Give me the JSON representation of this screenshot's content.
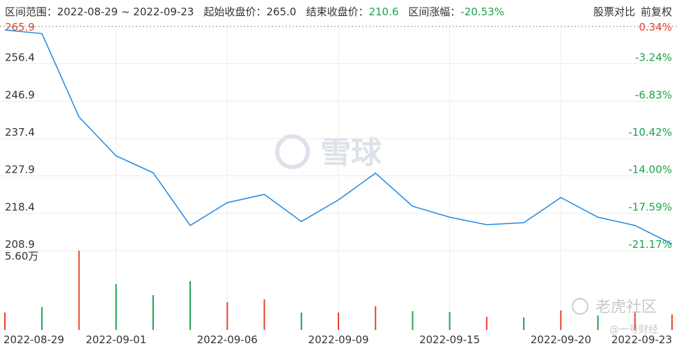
{
  "header": {
    "items": [
      {
        "label": "区间范围：",
        "value": "2022-08-29 ~ 2022-09-23"
      },
      {
        "label": "起始收盘价：",
        "value": "265.0"
      },
      {
        "label": "结束收盘价：",
        "value": "210.6"
      },
      {
        "label": "区间涨幅：",
        "value": "-20.53%"
      }
    ],
    "buttons": [
      "股票对比",
      "前复权"
    ]
  },
  "watermarks": {
    "center": "雪球",
    "corner": "老虎社区",
    "corner_sub": "@一号财经"
  },
  "chart_data": [
    {
      "type": "line",
      "categories": [
        "2022-08-29",
        null,
        null,
        "2022-09-01",
        null,
        null,
        "2022-09-06",
        null,
        null,
        "2022-09-09",
        null,
        null,
        "2022-09-15",
        null,
        null,
        "2022-09-20",
        null,
        null,
        "2022-09-23"
      ],
      "series": [
        {
          "color": "#1e88e5",
          "values": [
            265.0,
            264.1,
            242.9,
            233.0,
            228.7,
            215.3,
            221.1,
            223.2,
            216.3,
            221.8,
            228.6,
            220.2,
            217.4,
            215.5,
            216.0,
            222.4,
            217.4,
            215.3,
            210.6
          ]
        }
      ],
      "ylim": [
        208.9,
        265.9
      ],
      "yticks": [
        265.9,
        256.4,
        246.9,
        237.4,
        227.9,
        218.4,
        208.9
      ],
      "y2lim": [
        -21.17,
        0.34
      ],
      "y2ticks": [
        {
          "value": 0.34,
          "label": "0.34%"
        },
        {
          "value": -3.24,
          "label": "-3.24%"
        },
        {
          "value": -6.83,
          "label": "-6.83%"
        },
        {
          "value": -10.42,
          "label": "-10.42%"
        },
        {
          "value": -14.0,
          "label": "-14.00%"
        },
        {
          "value": -17.59,
          "label": "-17.59%"
        },
        {
          "value": -21.17,
          "label": "-21.17%"
        }
      ],
      "up_color": "#e8412c",
      "down_color": "#1aa34a",
      "grid": true
    },
    {
      "type": "bar",
      "values": [
        1.23,
        1.62,
        5.6,
        3.24,
        2.46,
        3.44,
        1.96,
        2.16,
        1.23,
        1.23,
        1.67,
        1.33,
        1.28,
        0.93,
        0.88,
        1.38,
        1.03,
        1.23,
        1.1
      ],
      "colors": [
        "#e8412c",
        "#1aa34a",
        "#e8412c",
        "#1aa34a",
        "#1aa34a",
        "#1aa34a",
        "#e8412c",
        "#e8412c",
        "#1aa34a",
        "#e8412c",
        "#e8412c",
        "#1aa34a",
        "#1aa34a",
        "#e8412c",
        "#1aa34a",
        "#e8412c",
        "#1aa34a",
        "#e8412c",
        "#e8412c"
      ],
      "ylim": [
        0,
        5.6
      ],
      "yticks": [
        {
          "value": 5.6,
          "label": "5.60万"
        }
      ]
    }
  ]
}
